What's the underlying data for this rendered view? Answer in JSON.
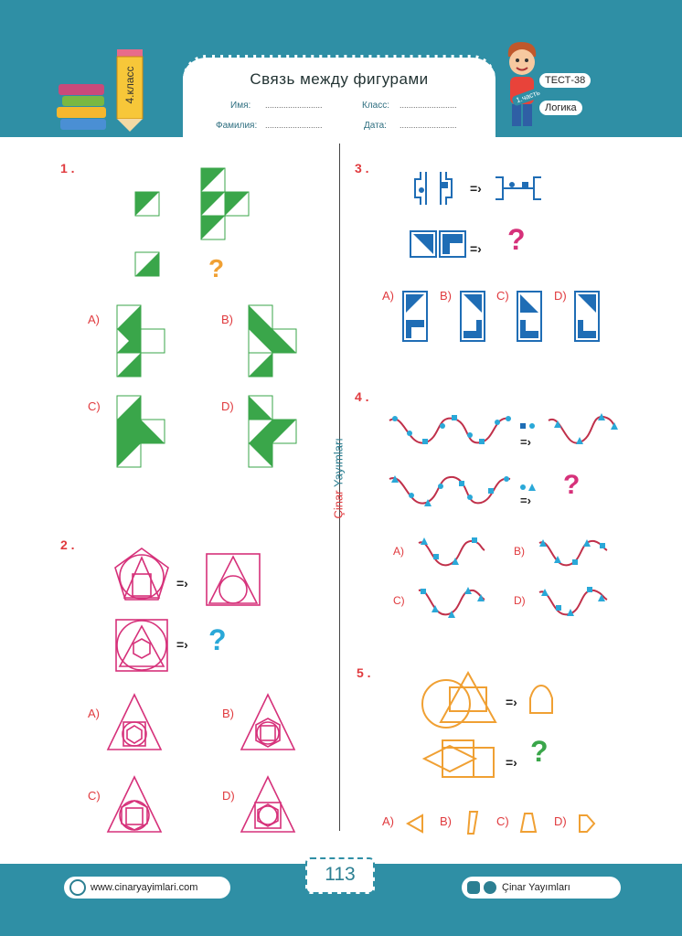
{
  "header": {
    "title": "Связь между фигурами",
    "grade": "4.класс",
    "fields": {
      "name_label": "Имя:",
      "class_label": "Класс:",
      "surname_label": "Фамилия:",
      "date_label": "Дата:",
      "blank": "........................."
    },
    "test_label": "ТЕСТ-38",
    "part_label": "1.часть",
    "subject_label": "Логика"
  },
  "questions": {
    "q1": {
      "number": "1 .",
      "options": [
        "A)",
        "B)",
        "C)",
        "D)"
      ]
    },
    "q2": {
      "number": "2 .",
      "options": [
        "A)",
        "B)",
        "C)",
        "D)"
      ]
    },
    "q3": {
      "number": "3 .",
      "options": [
        "A)",
        "B)",
        "C)",
        "D)"
      ]
    },
    "q4": {
      "number": "4 .",
      "options": [
        "A)",
        "B)",
        "C)",
        "D)"
      ]
    },
    "q5": {
      "number": "5 .",
      "options": [
        "A)",
        "B)",
        "C)",
        "D)"
      ]
    },
    "arrow": "=›",
    "question_mark": "?"
  },
  "publisher_vertical": {
    "part1": "Çinar",
    "part2": "Yayımları"
  },
  "footer": {
    "website": "www.cinaryayimlari.com",
    "social": "Çinar Yayımları",
    "page_number": "113"
  },
  "colors": {
    "band": "#2f8fa5",
    "green": "#3aa64a",
    "magenta": "#d6317a",
    "blue": "#1f6db5",
    "cyan": "#2aa8d8",
    "orange": "#f0a033",
    "red": "#e03a3e"
  }
}
